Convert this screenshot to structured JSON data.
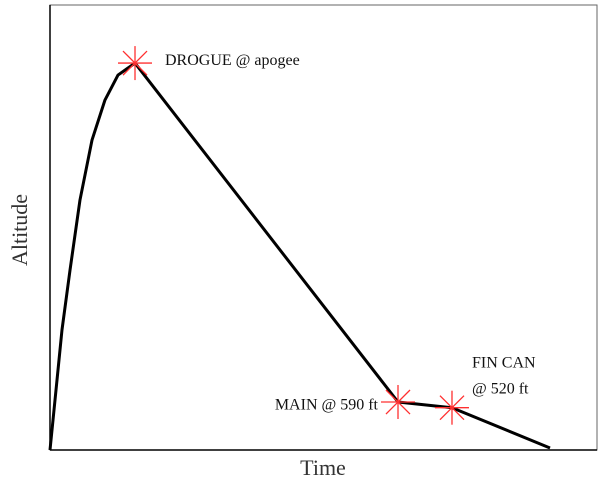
{
  "chart_data": {
    "type": "line",
    "x_label": "Time",
    "y_label": "Altitude",
    "xlim": [
      0,
      100
    ],
    "ylim": [
      0,
      5470
    ],
    "x": [
      0,
      0.55,
      1.28,
      2.19,
      3.66,
      5.48,
      7.68,
      10.05,
      12.43,
      15.54,
      63.62,
      73.49,
      91.41
    ],
    "series": [
      {
        "color": "#000000",
        "values": [
          0,
          369,
          860,
          1475,
          2212,
          3073,
          3810,
          4302,
          4609,
          4756,
          590,
          520,
          25
        ]
      }
    ],
    "marker_color": "#ff3030",
    "markers": [
      {
        "lines": [
          "DROGUE @ apogee"
        ],
        "x": 15.54,
        "y": 4756
      },
      {
        "lines": [
          "MAIN @ 590 ft"
        ],
        "x": 63.62,
        "y": 590
      },
      {
        "lines": [
          "FIN CAN",
          "@ 520 ft"
        ],
        "x": 73.49,
        "y": 520
      }
    ]
  }
}
